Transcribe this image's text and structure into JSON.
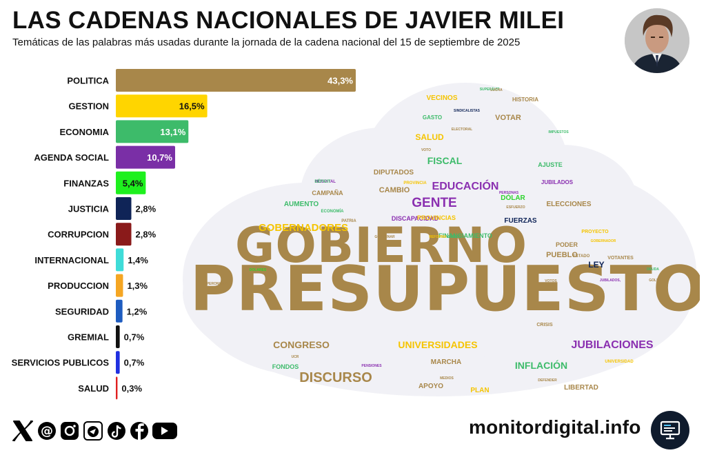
{
  "header": {
    "title": "LAS CADENAS NACIONALES DE JAVIER MILEI",
    "subtitle": "Temáticas de las palabras más usadas durante la jornada de la cadena nacional del 15 de septiembre de 2025"
  },
  "footer": {
    "site": "monitordigital.info",
    "social_icons": [
      "x-icon",
      "threads-icon",
      "instagram-icon",
      "telegram-icon",
      "tiktok-icon",
      "facebook-icon",
      "youtube-icon"
    ]
  },
  "chart_data": [
    {
      "type": "bar",
      "orientation": "horizontal",
      "categories": [
        "POLITICA",
        "GESTION",
        "ECONOMIA",
        "AGENDA SOCIAL",
        "FINANZAS",
        "JUSTICIA",
        "CORRUPCION",
        "INTERNACIONAL",
        "PRODUCCION",
        "SEGURIDAD",
        "GREMIAL",
        "SERVICIOS PUBLICOS",
        "SALUD"
      ],
      "values": [
        43.3,
        16.5,
        13.1,
        10.7,
        5.4,
        2.8,
        2.8,
        1.4,
        1.3,
        1.2,
        0.7,
        0.7,
        0.3
      ],
      "labels": [
        "43,3%",
        "16,5%",
        "13,1%",
        "10,7%",
        "5,4%",
        "2,8%",
        "2,8%",
        "1,4%",
        "1,3%",
        "1,2%",
        "0,7%",
        "0,7%",
        "0,3%"
      ],
      "colors": [
        "#a8874a",
        "#ffd500",
        "#3dbb6a",
        "#7a2fa6",
        "#1ef01e",
        "#0f2457",
        "#8a1a1a",
        "#3fdcd8",
        "#f5a623",
        "#1e5cc0",
        "#111111",
        "#2030e0",
        "#e02020"
      ],
      "unit": "%",
      "xlim": [
        0,
        43.3
      ],
      "title": "",
      "xlabel": "",
      "ylabel": ""
    },
    {
      "type": "wordcloud",
      "category_colors": {
        "POLITICA": "#a8874a",
        "GESTION": "#f5c400",
        "ECONOMIA": "#3dbb6a",
        "AGENDA SOCIAL": "#8a2fb0",
        "FINANZAS": "#2ed32e",
        "JUSTICIA": "#0f2457",
        "PROVINCIAS": "#f5c400"
      },
      "words": [
        {
          "text": "PRESUPUESTO",
          "weight": 100,
          "category": "POLITICA"
        },
        {
          "text": "GOBIERNO",
          "weight": 78,
          "category": "POLITICA"
        },
        {
          "text": "DISCURSO",
          "weight": 22,
          "category": "POLITICA"
        },
        {
          "text": "GENTE",
          "weight": 21,
          "category": "AGENDA SOCIAL"
        },
        {
          "text": "JUBILACIONES",
          "weight": 18,
          "category": "AGENDA SOCIAL"
        },
        {
          "text": "EDUCACIÓN",
          "weight": 18,
          "category": "AGENDA SOCIAL"
        },
        {
          "text": "GOBERNADORES",
          "weight": 17,
          "category": "GESTION"
        },
        {
          "text": "CONGRESO",
          "weight": 16,
          "category": "POLITICA"
        },
        {
          "text": "UNIVERSIDADES",
          "weight": 16,
          "category": "GESTION"
        },
        {
          "text": "INFLACIÓN",
          "weight": 16,
          "category": "ECONOMIA"
        },
        {
          "text": "FISCAL",
          "weight": 15,
          "category": "ECONOMIA"
        },
        {
          "text": "LEY",
          "weight": 13,
          "category": "JUSTICIA"
        },
        {
          "text": "SALUD",
          "weight": 13,
          "category": "GESTION"
        },
        {
          "text": "VOTAR",
          "weight": 12,
          "category": "POLITICA"
        },
        {
          "text": "CAMBIO",
          "weight": 12,
          "category": "POLITICA"
        },
        {
          "text": "PUEBLO",
          "weight": 12,
          "category": "POLITICA"
        },
        {
          "text": "DÓLAR",
          "weight": 11,
          "category": "FINANZAS"
        },
        {
          "text": "VECINOS",
          "weight": 11,
          "category": "GESTION"
        },
        {
          "text": "FUERZAS",
          "weight": 11,
          "category": "JUSTICIA"
        },
        {
          "text": "DIPUTADOS",
          "weight": 11,
          "category": "POLITICA"
        },
        {
          "text": "ELECCIONES",
          "weight": 11,
          "category": "POLITICA"
        },
        {
          "text": "LIBERTAD",
          "weight": 11,
          "category": "POLITICA"
        },
        {
          "text": "MARCHA",
          "weight": 11,
          "category": "POLITICA"
        },
        {
          "text": "APOYO",
          "weight": 11,
          "category": "POLITICA"
        },
        {
          "text": "AUMENTO",
          "weight": 11,
          "category": "ECONOMIA"
        },
        {
          "text": "PLAN",
          "weight": 11,
          "category": "GESTION"
        },
        {
          "text": "FONDOS",
          "weight": 10,
          "category": "ECONOMIA"
        },
        {
          "text": "FINANCIAMIENTO",
          "weight": 10,
          "category": "ECONOMIA"
        },
        {
          "text": "DISCAPACIDAD",
          "weight": 10,
          "category": "AGENDA SOCIAL"
        },
        {
          "text": "PROVINCIAS",
          "weight": 10,
          "category": "PROVINCIAS"
        },
        {
          "text": "CAMPAÑA",
          "weight": 10,
          "category": "POLITICA"
        },
        {
          "text": "PODER",
          "weight": 10,
          "category": "POLITICA"
        },
        {
          "text": "AJUSTE",
          "weight": 10,
          "category": "ECONOMIA"
        },
        {
          "text": "JUBILADOS",
          "weight": 9,
          "category": "AGENDA SOCIAL"
        },
        {
          "text": "GASTO",
          "weight": 9,
          "category": "ECONOMIA"
        },
        {
          "text": "HISTORIA",
          "weight": 9,
          "category": "POLITICA"
        },
        {
          "text": "CRISIS",
          "weight": 8,
          "category": "POLITICA"
        },
        {
          "text": "PROYECTO",
          "weight": 8,
          "category": "GESTION"
        },
        {
          "text": "UNIVERSIDAD",
          "weight": 7,
          "category": "GESTION"
        },
        {
          "text": "VOTANTES",
          "weight": 8,
          "category": "POLITICA"
        },
        {
          "text": "ESTADO",
          "weight": 7,
          "category": "POLITICA"
        },
        {
          "text": "PATRIA",
          "weight": 7,
          "category": "POLITICA"
        },
        {
          "text": "ECONOMÍA",
          "weight": 7,
          "category": "ECONOMIA"
        },
        {
          "text": "HOSPITAL",
          "weight": 7,
          "category": "AGENDA SOCIAL"
        },
        {
          "text": "DÉFICIT",
          "weight": 7,
          "category": "ECONOMIA"
        },
        {
          "text": "PROVINCIA",
          "weight": 7,
          "category": "GESTION"
        },
        {
          "text": "PERSONAS",
          "weight": 6,
          "category": "AGENDA SOCIAL"
        },
        {
          "text": "ESFUERZO",
          "weight": 6,
          "category": "POLITICA"
        },
        {
          "text": "VOTOS",
          "weight": 6,
          "category": "POLITICA"
        },
        {
          "text": "VOTO",
          "weight": 6,
          "category": "POLITICA"
        },
        {
          "text": "SINDICALISTAS",
          "weight": 6,
          "category": "JUSTICIA"
        },
        {
          "text": "ELECTORAL",
          "weight": 5,
          "category": "POLITICA"
        },
        {
          "text": "GOBERNADOR",
          "weight": 5,
          "category": "GESTION"
        },
        {
          "text": "JUBILADOS,",
          "weight": 5,
          "category": "AGENDA SOCIAL"
        },
        {
          "text": "SUPERÁVIT",
          "weight": 5,
          "category": "ECONOMIA"
        },
        {
          "text": "DEUDA",
          "weight": 5,
          "category": "ECONOMIA"
        },
        {
          "text": "GOLPE",
          "weight": 5,
          "category": "POLITICA"
        },
        {
          "text": "PERONISMO",
          "weight": 5,
          "category": "POLITICA"
        },
        {
          "text": "DOLARES",
          "weight": 5,
          "category": "FINANZAS"
        },
        {
          "text": "UCR",
          "weight": 5,
          "category": "POLITICA"
        },
        {
          "text": "PENSIONES",
          "weight": 5,
          "category": "AGENDA SOCIAL"
        },
        {
          "text": "MEDIOS",
          "weight": 5,
          "category": "POLITICA"
        },
        {
          "text": "DEFENDER",
          "weight": 5,
          "category": "POLITICA"
        },
        {
          "text": "GOBERNAR",
          "weight": 5,
          "category": "POLITICA"
        },
        {
          "text": "SUELDO",
          "weight": 5,
          "category": "ECONOMIA"
        },
        {
          "text": "IMPUESTOS",
          "weight": 5,
          "category": "ECONOMIA"
        },
        {
          "text": "LUCHA",
          "weight": 5,
          "category": "POLITICA"
        },
        {
          "text": "REFORMA",
          "weight": 5,
          "category": "GESTION"
        }
      ]
    }
  ]
}
